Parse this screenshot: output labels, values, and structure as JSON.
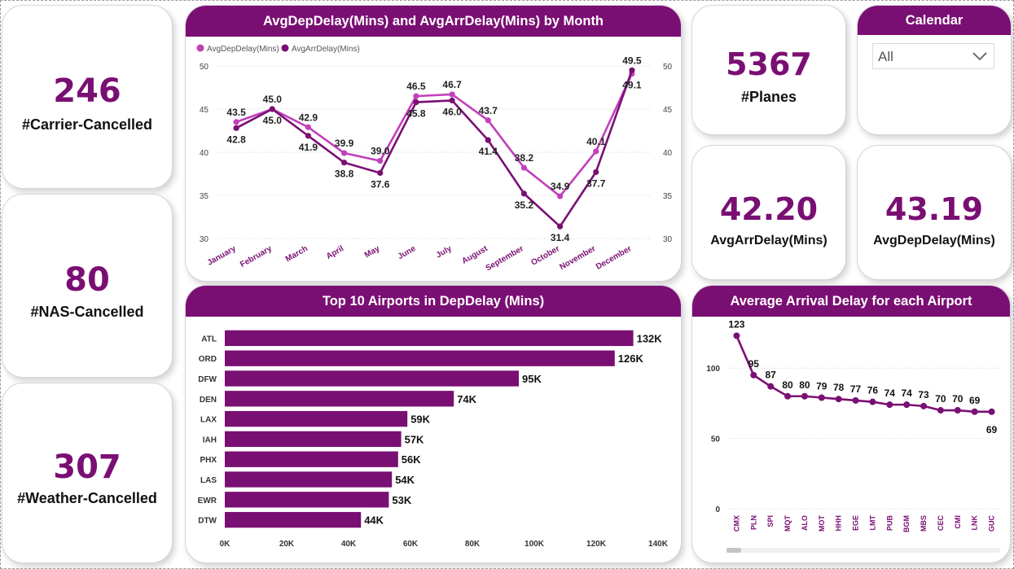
{
  "kpis": {
    "carrier": {
      "value": "246",
      "label": "#Carrier-Cancelled"
    },
    "nas": {
      "value": "80",
      "label": "#NAS-Cancelled"
    },
    "weather": {
      "value": "307",
      "label": "#Weather-Cancelled"
    },
    "planes": {
      "value": "5367",
      "label": "#Planes"
    },
    "arr": {
      "value": "42.20",
      "label": "AvgArrDelay(Mins)"
    },
    "dep": {
      "value": "43.19",
      "label": "AvgDepDelay(Mins)"
    }
  },
  "calendar": {
    "title": "Calendar",
    "selected": "All"
  },
  "colors": {
    "primary": "#7a0f73",
    "secondary": "#c23fbb"
  },
  "chart_data": [
    {
      "type": "line",
      "title": "AvgDepDelay(Mins) and AvgArrDelay(Mins) by Month",
      "categories": [
        "January",
        "February",
        "March",
        "April",
        "May",
        "June",
        "July",
        "August",
        "September",
        "October",
        "November",
        "December"
      ],
      "series": [
        {
          "name": "AvgDepDelay(Mins)",
          "values": [
            43.5,
            45.0,
            42.9,
            39.9,
            39.0,
            46.5,
            46.7,
            43.7,
            38.2,
            34.9,
            40.1,
            49.1
          ]
        },
        {
          "name": "AvgArrDelay(Mins)",
          "values": [
            42.8,
            45.0,
            41.9,
            38.8,
            37.6,
            45.8,
            46.0,
            41.4,
            35.2,
            31.4,
            37.7,
            49.5
          ]
        }
      ],
      "labels": {
        "dep": [
          "43.5",
          "45.0",
          "42.9",
          "39.9",
          "39.0",
          "46.5",
          "46.7",
          "43.7",
          "38.2",
          "34.9",
          "40.1",
          "49.1"
        ],
        "arr": [
          "42.8",
          "45.0",
          "41.9",
          "38.8",
          "37.6",
          "45.8",
          "46.0",
          "41.4",
          "35.2",
          "31.4",
          "37.7",
          "49.5"
        ]
      },
      "ylim": [
        30,
        50
      ],
      "yticks": [
        "50",
        "45",
        "40",
        "35",
        "30"
      ],
      "legend": "top-left"
    },
    {
      "type": "bar",
      "orientation": "horizontal",
      "title": "Top 10 Airports in DepDelay (Mins)",
      "categories": [
        "ATL",
        "ORD",
        "DFW",
        "DEN",
        "LAX",
        "IAH",
        "PHX",
        "LAS",
        "EWR",
        "DTW"
      ],
      "values": [
        132000,
        126000,
        95000,
        74000,
        59000,
        57000,
        56000,
        54000,
        53000,
        44000
      ],
      "value_labels": [
        "132K",
        "126K",
        "95K",
        "74K",
        "59K",
        "57K",
        "56K",
        "54K",
        "53K",
        "44K"
      ],
      "xlim": [
        0,
        140000
      ],
      "xticks": [
        "0K",
        "20K",
        "40K",
        "60K",
        "80K",
        "100K",
        "120K",
        "140K"
      ]
    },
    {
      "type": "line",
      "title": "Average Arrival Delay for each Airport",
      "categories": [
        "CMX",
        "PLN",
        "SPI",
        "MQT",
        "ALO",
        "MOT",
        "HHH",
        "EGE",
        "LMT",
        "PUB",
        "BGM",
        "MBS",
        "CEC",
        "CMI",
        "LNK",
        "GUC"
      ],
      "values": [
        123,
        95,
        87,
        80,
        80,
        79,
        78,
        77,
        76,
        74,
        74,
        73,
        70,
        70,
        69,
        69
      ],
      "value_labels": [
        "123",
        "95",
        "87",
        "80",
        "80",
        "79",
        "78",
        "77",
        "76",
        "74",
        "74",
        "73",
        "70",
        "70",
        "69",
        "69"
      ],
      "ylim": [
        0,
        125
      ],
      "yticks": [
        "100",
        "50",
        "0"
      ]
    }
  ]
}
